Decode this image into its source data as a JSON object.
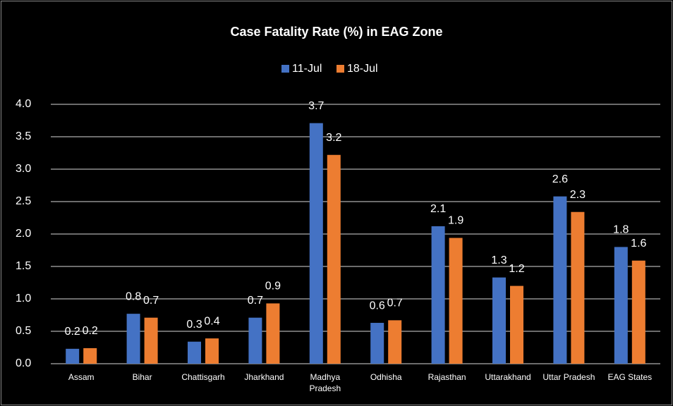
{
  "chart_data": {
    "type": "bar",
    "title": "Case Fatality Rate (%) in EAG Zone",
    "categories": [
      "Assam",
      "Bihar",
      "Chattisgarh",
      "Jharkhand",
      "Madhya Pradesh",
      "Odhisha",
      "Rajasthan",
      "Uttarakhand",
      "Uttar Pradesh",
      "EAG States"
    ],
    "series": [
      {
        "name": "11-Jul",
        "color": "#4472c4",
        "values": [
          0.23,
          0.77,
          0.34,
          0.71,
          3.71,
          0.63,
          2.12,
          1.33,
          2.58,
          1.8
        ],
        "value_labels": [
          "0.2",
          "0.8",
          "0.3",
          "0.7",
          "3.7",
          "0.6",
          "2.1",
          "1.3",
          "2.6",
          "1.8"
        ]
      },
      {
        "name": "18-Jul",
        "color": "#ed7d31",
        "values": [
          0.24,
          0.71,
          0.39,
          0.93,
          3.22,
          0.67,
          1.94,
          1.2,
          2.34,
          1.59
        ],
        "value_labels": [
          "0.2",
          "0.7",
          "0.4",
          "0.9",
          "3.2",
          "0.7",
          "1.9",
          "1.2",
          "2.3",
          "1.6"
        ]
      }
    ],
    "ylim": [
      0,
      4
    ],
    "yticks": [
      {
        "value": 0,
        "label": "0.0"
      },
      {
        "value": 0.5,
        "label": "0.5"
      },
      {
        "value": 1,
        "label": "1.0"
      },
      {
        "value": 1.5,
        "label": "1.5"
      },
      {
        "value": 2,
        "label": "2.0"
      },
      {
        "value": 2.5,
        "label": "2.5"
      },
      {
        "value": 3,
        "label": "3.0"
      },
      {
        "value": 3.5,
        "label": "3.5"
      },
      {
        "value": 4,
        "label": "4.0"
      }
    ],
    "grid": true,
    "legend": "top"
  }
}
